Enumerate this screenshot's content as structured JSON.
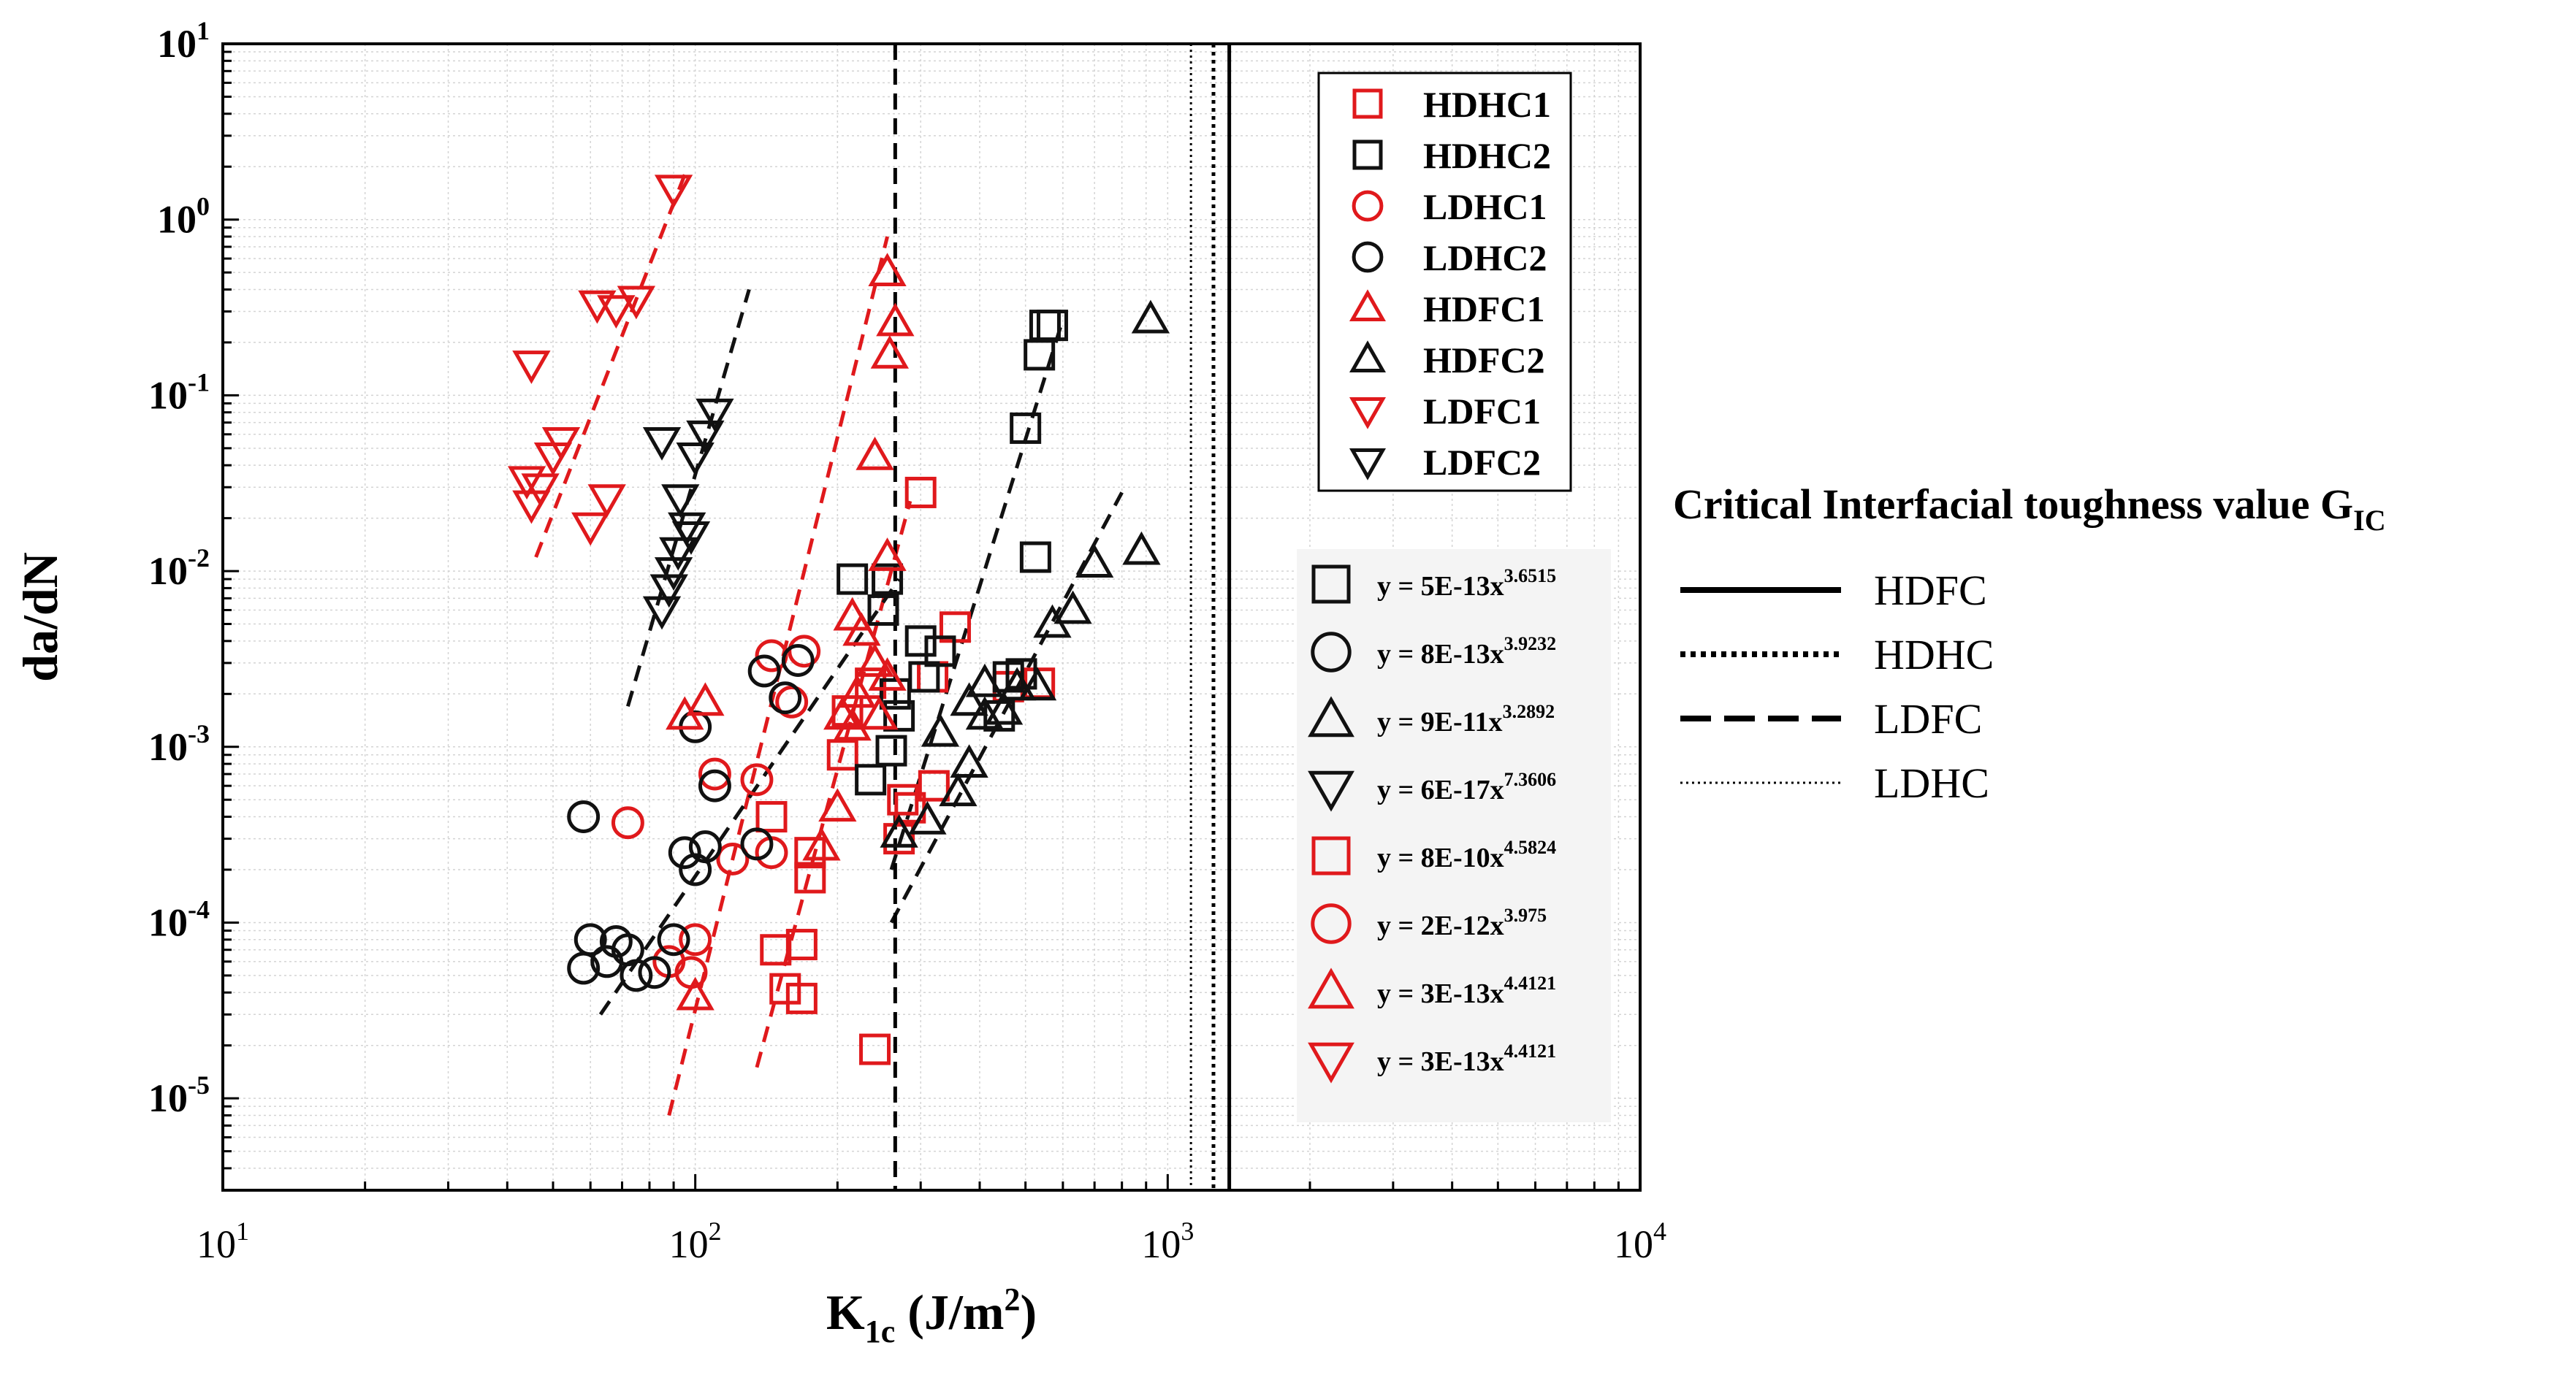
{
  "chart_data": {
    "type": "scatter",
    "xscale": "log",
    "yscale": "log",
    "xlim": [
      10,
      10000
    ],
    "ylim": [
      3e-06,
      10
    ],
    "xticks": [
      10,
      100,
      1000,
      10000
    ],
    "xtick_labels": [
      {
        "base": "10",
        "exp": "1"
      },
      {
        "base": "10",
        "exp": "2"
      },
      {
        "base": "10",
        "exp": "3"
      },
      {
        "base": "10",
        "exp": "4"
      }
    ],
    "yticks": [
      1e-05,
      0.0001,
      0.001,
      0.01,
      0.1,
      1,
      10
    ],
    "ytick_labels": [
      {
        "base": "10",
        "exp": "-5"
      },
      {
        "base": "10",
        "exp": "-4"
      },
      {
        "base": "10",
        "exp": "-3"
      },
      {
        "base": "10",
        "exp": "-2"
      },
      {
        "base": "10",
        "exp": "-1"
      },
      {
        "base": "10",
        "exp": "0"
      },
      {
        "base": "10",
        "exp": "1"
      }
    ],
    "xlabel": {
      "main": "K",
      "sub": "1c",
      "unit": " (J/m",
      "sup": "2",
      "close": ")"
    },
    "ylabel": "da/dN",
    "grid": true,
    "colors": {
      "red": "#e0191c",
      "black": "#111111",
      "grid": "#d4d4d4"
    },
    "series": [
      {
        "name": "HDHC1",
        "marker": "square",
        "color": "red",
        "points": [
          [
            300,
            0.028
          ],
          [
            535,
            0.0023
          ],
          [
            460,
            0.0022
          ],
          [
            355,
            0.0048
          ],
          [
            318,
            0.0025
          ],
          [
            320,
            0.0006
          ],
          [
            285,
            0.00045
          ],
          [
            235,
            0.0023
          ],
          [
            210,
            0.0016
          ],
          [
            205,
            0.0009
          ],
          [
            175,
            0.00025
          ],
          [
            175,
            0.00018
          ],
          [
            145,
            0.0004
          ],
          [
            148,
            7e-05
          ],
          [
            168,
            7.5e-05
          ],
          [
            155,
            4.2e-05
          ],
          [
            168,
            3.7e-05
          ],
          [
            240,
            1.9e-05
          ],
          [
            270,
            0.0003
          ],
          [
            275,
            0.0005
          ]
        ]
      },
      {
        "name": "HDHC2",
        "marker": "square",
        "color": "black",
        "points": [
          [
            550,
            0.25
          ],
          [
            570,
            0.25
          ],
          [
            535,
            0.17
          ],
          [
            500,
            0.065
          ],
          [
            525,
            0.012
          ],
          [
            215,
            0.009
          ],
          [
            250,
            0.006
          ],
          [
            255,
            0.009
          ],
          [
            300,
            0.004
          ],
          [
            330,
            0.0035
          ],
          [
            305,
            0.0025
          ],
          [
            265,
            0.002
          ],
          [
            270,
            0.0015
          ],
          [
            235,
            0.00065
          ],
          [
            260,
            0.00095
          ],
          [
            490,
            0.0026
          ],
          [
            460,
            0.0025
          ],
          [
            440,
            0.0015
          ]
        ]
      },
      {
        "name": "LDHC1",
        "marker": "circle",
        "color": "red",
        "points": [
          [
            72,
            0.00037
          ],
          [
            110,
            0.0007
          ],
          [
            135,
            0.00065
          ],
          [
            145,
            0.0033
          ],
          [
            160,
            0.0018
          ],
          [
            170,
            0.0035
          ],
          [
            120,
            0.00023
          ],
          [
            145,
            0.00025
          ],
          [
            100,
            8e-05
          ],
          [
            88,
            6e-05
          ],
          [
            98,
            5.2e-05
          ]
        ]
      },
      {
        "name": "LDHC2",
        "marker": "circle",
        "color": "black",
        "points": [
          [
            58,
            0.0004
          ],
          [
            100,
            0.0013
          ],
          [
            110,
            0.0006
          ],
          [
            95,
            0.00025
          ],
          [
            105,
            0.00027
          ],
          [
            100,
            0.0002
          ],
          [
            135,
            0.00028
          ],
          [
            140,
            0.0027
          ],
          [
            155,
            0.0019
          ],
          [
            165,
            0.0031
          ],
          [
            60,
            8e-05
          ],
          [
            68,
            7.8e-05
          ],
          [
            65,
            6e-05
          ],
          [
            72,
            7e-05
          ],
          [
            90,
            8e-05
          ],
          [
            58,
            5.5e-05
          ],
          [
            75,
            5e-05
          ],
          [
            82,
            5.2e-05
          ]
        ]
      },
      {
        "name": "HDFC1",
        "marker": "triangle-up",
        "color": "red",
        "points": [
          [
            255,
            0.5
          ],
          [
            265,
            0.26
          ],
          [
            258,
            0.17
          ],
          [
            240,
            0.045
          ],
          [
            255,
            0.012
          ],
          [
            215,
            0.0055
          ],
          [
            225,
            0.0045
          ],
          [
            240,
            0.003
          ],
          [
            255,
            0.0025
          ],
          [
            220,
            0.002
          ],
          [
            205,
            0.0015
          ],
          [
            215,
            0.0013
          ],
          [
            245,
            0.0015
          ],
          [
            95,
            0.0015
          ],
          [
            105,
            0.0018
          ],
          [
            200,
            0.00045
          ],
          [
            185,
            0.00027
          ],
          [
            100,
            3.8e-05
          ]
        ]
      },
      {
        "name": "HDFC2",
        "marker": "triangle-up",
        "color": "black",
        "points": [
          [
            920,
            0.27
          ],
          [
            880,
            0.013
          ],
          [
            700,
            0.011
          ],
          [
            630,
            0.006
          ],
          [
            570,
            0.005
          ],
          [
            530,
            0.0022
          ],
          [
            410,
            0.0023
          ],
          [
            380,
            0.0018
          ],
          [
            480,
            0.0022
          ],
          [
            450,
            0.0016
          ],
          [
            410,
            0.0015
          ],
          [
            330,
            0.0012
          ],
          [
            380,
            0.0008
          ],
          [
            360,
            0.00055
          ],
          [
            310,
            0.00038
          ],
          [
            270,
            0.00032
          ]
        ]
      },
      {
        "name": "LDFC1",
        "marker": "triangle-down",
        "color": "red",
        "points": [
          [
            90,
            1.5
          ],
          [
            62,
            0.33
          ],
          [
            68,
            0.31
          ],
          [
            75,
            0.35
          ],
          [
            45,
            0.15
          ],
          [
            52,
            0.055
          ],
          [
            50,
            0.045
          ],
          [
            47,
            0.03
          ],
          [
            44,
            0.033
          ],
          [
            45,
            0.024
          ],
          [
            60,
            0.018
          ],
          [
            65,
            0.026
          ]
        ]
      },
      {
        "name": "LDFC2",
        "marker": "triangle-down",
        "color": "black",
        "points": [
          [
            110,
            0.08
          ],
          [
            105,
            0.06
          ],
          [
            85,
            0.055
          ],
          [
            100,
            0.045
          ],
          [
            93,
            0.026
          ],
          [
            96,
            0.018
          ],
          [
            98,
            0.016
          ],
          [
            92,
            0.013
          ],
          [
            90,
            0.01
          ],
          [
            88,
            0.008
          ],
          [
            85,
            0.006
          ]
        ]
      }
    ],
    "fit_lines": [
      {
        "color": "red",
        "points": [
          [
            46,
            0.012
          ],
          [
            95,
            1.8
          ]
        ]
      },
      {
        "color": "black",
        "points": [
          [
            72,
            0.0017
          ],
          [
            130,
            0.4
          ]
        ]
      },
      {
        "color": "red",
        "points": [
          [
            88,
            8e-06
          ],
          [
            255,
            0.8
          ]
        ]
      },
      {
        "color": "red",
        "points": [
          [
            135,
            1.5e-05
          ],
          [
            285,
            0.025
          ]
        ]
      },
      {
        "color": "black",
        "points": [
          [
            63,
            3e-05
          ],
          [
            270,
            0.009
          ]
        ]
      },
      {
        "color": "black",
        "points": [
          [
            260,
            0.0002
          ],
          [
            600,
            0.27
          ]
        ]
      },
      {
        "color": "black",
        "points": [
          [
            260,
            0.0001
          ],
          [
            800,
            0.028
          ]
        ]
      }
    ],
    "reference_lines": [
      {
        "label": "HDFC",
        "x": 1350,
        "style": "solid"
      },
      {
        "label": "HDHC",
        "x": 1250,
        "style": "dotted"
      },
      {
        "label": "LDFC",
        "x": 265,
        "style": "dashed"
      },
      {
        "label": "LDHC",
        "x": 1120,
        "style": "fine-dotted"
      }
    ],
    "legend": [
      "HDHC1",
      "HDHC2",
      "LDHC1",
      "LDHC2",
      "HDFC1",
      "HDFC2",
      "LDFC1",
      "LDFC2"
    ],
    "equations": [
      {
        "marker": "square",
        "color": "black",
        "text": "y = 5E-13x",
        "exp": "3.6515"
      },
      {
        "marker": "circle",
        "color": "black",
        "text": "y = 8E-13x",
        "exp": "3.9232"
      },
      {
        "marker": "triangle-up",
        "color": "black",
        "text": "y = 9E-11x",
        "exp": "3.2892"
      },
      {
        "marker": "triangle-down",
        "color": "black",
        "text": "y = 6E-17x",
        "exp": "7.3606"
      },
      {
        "marker": "square",
        "color": "red",
        "text": "y = 8E-10x",
        "exp": "4.5824"
      },
      {
        "marker": "circle",
        "color": "red",
        "text": "y = 2E-12x",
        "exp": "3.975"
      },
      {
        "marker": "triangle-up",
        "color": "red",
        "text": "y = 3E-13x",
        "exp": "4.4121"
      },
      {
        "marker": "triangle-down",
        "color": "red",
        "text": "y = 3E-13x",
        "exp": "4.4121"
      }
    ],
    "critical_legend": {
      "title_main": "Critical Interfacial toughness value G",
      "title_sub": "IC",
      "entries": [
        {
          "label": "HDFC",
          "style": "solid"
        },
        {
          "label": "HDHC",
          "style": "dotted"
        },
        {
          "label": "LDFC",
          "style": "dashed"
        },
        {
          "label": "LDHC",
          "style": "fine-dotted"
        }
      ]
    }
  }
}
